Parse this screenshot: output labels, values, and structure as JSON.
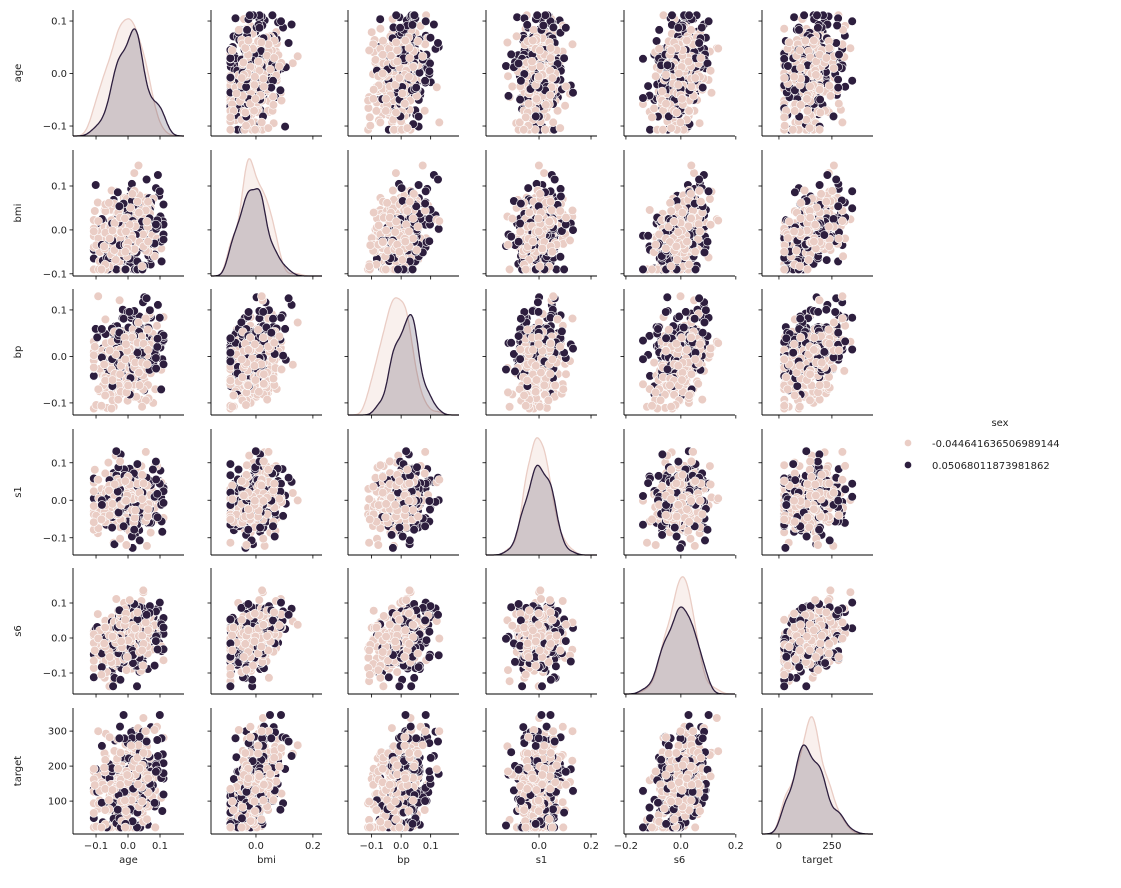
{
  "chart_data": {
    "type": "scatter",
    "kind": "pairplot",
    "diagonal_kind": "kde",
    "grid": false,
    "variables": [
      "age",
      "bmi",
      "bp",
      "s1",
      "s6",
      "target"
    ],
    "axes": {
      "age": {
        "xlim": [
          -0.172,
          0.175
        ],
        "ylim": [
          -0.119,
          0.121
        ],
        "xticks": [
          -0.1,
          0.0,
          0.1
        ],
        "xtick_labels": [
          "−0.1",
          "0.0",
          "0.1"
        ],
        "yticks": [
          -0.1,
          0.0,
          0.1
        ],
        "ytick_labels": [
          "−0.1",
          "0.0",
          "0.1"
        ]
      },
      "bmi": {
        "xlim": [
          -0.158,
          0.232
        ],
        "ylim": [
          -0.105,
          0.182
        ],
        "xticks": [
          0.0,
          0.2
        ],
        "xtick_labels": [
          "0.0",
          "0.2"
        ],
        "yticks": [
          -0.1,
          0.0,
          0.1
        ],
        "ytick_labels": [
          "−0.1",
          "0.0",
          "0.1"
        ]
      },
      "bp": {
        "xlim": [
          -0.18,
          0.196
        ],
        "ylim": [
          -0.126,
          0.145
        ],
        "xticks": [
          -0.1,
          0.0,
          0.1
        ],
        "xtick_labels": [
          "−0.1",
          "0.0",
          "0.1"
        ],
        "yticks": [
          -0.1,
          0.0,
          0.1
        ],
        "ytick_labels": [
          "−0.1",
          "0.0",
          "0.1"
        ]
      },
      "s1": {
        "xlim": [
          -0.204,
          0.223
        ],
        "ylim": [
          -0.146,
          0.19
        ],
        "xticks": [
          0.0,
          0.2
        ],
        "xtick_labels": [
          "0.0",
          "0.2"
        ],
        "yticks": [
          -0.1,
          0.0,
          0.1
        ],
        "ytick_labels": [
          "−0.1",
          "0.0",
          "0.1"
        ]
      },
      "s6": {
        "xlim": [
          -0.207,
          0.197
        ],
        "ylim": [
          -0.16,
          0.2
        ],
        "xticks": [
          -0.2,
          0.0,
          0.2
        ],
        "xtick_labels": [
          "−0.2",
          "0.0",
          "0.2"
        ],
        "yticks": [
          -0.1,
          0.0,
          0.1
        ],
        "ytick_labels": [
          "−0.1",
          "0.0",
          "0.1"
        ]
      },
      "target": {
        "xlim": [
          -80,
          444
        ],
        "ylim": [
          6,
          366
        ],
        "xticks": [
          0,
          250
        ],
        "xtick_labels": [
          "0",
          "250"
        ],
        "yticks": [
          100,
          200,
          300
        ],
        "ytick_labels": [
          "100",
          "200",
          "300"
        ]
      }
    },
    "hue": {
      "title": "sex",
      "levels": [
        {
          "name": "-0.044641636506989144",
          "color": "#eacdc5"
        },
        {
          "name": "0.05068011873981862",
          "color": "#2d1e3e"
        }
      ]
    },
    "legend_position": "right"
  }
}
